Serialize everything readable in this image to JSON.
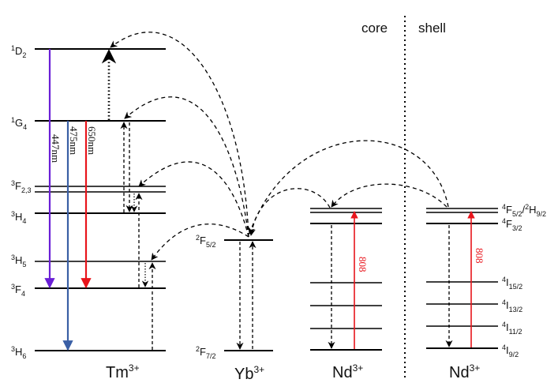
{
  "colors": {
    "violet": "#6a1fd6",
    "blue": "#3a5fa5",
    "red": "#e8141b",
    "black": "#000000"
  },
  "regions": {
    "core": "core",
    "shell": "shell"
  },
  "ions": {
    "tm": {
      "symbol": "Tm",
      "charge": "3+"
    },
    "yb": {
      "symbol": "Yb",
      "charge": "3+"
    },
    "nd_core": {
      "symbol": "Nd",
      "charge": "3+"
    },
    "nd_shell": {
      "symbol": "Nd",
      "charge": "3+"
    }
  },
  "tm_levels": {
    "D2": {
      "mult": "1",
      "term": "D",
      "j": "2"
    },
    "G4": {
      "mult": "1",
      "term": "G",
      "j": "4"
    },
    "F23": {
      "mult": "3",
      "term": "F",
      "j": "2,3"
    },
    "H4": {
      "mult": "3",
      "term": "H",
      "j": "4"
    },
    "H5": {
      "mult": "3",
      "term": "H",
      "j": "5"
    },
    "F4": {
      "mult": "3",
      "term": "F",
      "j": "4"
    },
    "H6": {
      "mult": "3",
      "term": "H",
      "j": "6"
    }
  },
  "yb_levels": {
    "F52": {
      "mult": "2",
      "term": "F",
      "j": "5/2"
    },
    "F72": {
      "mult": "2",
      "term": "F",
      "j": "7/2"
    }
  },
  "nd_levels": {
    "F52H92": {
      "mult": "4",
      "term": "F",
      "j": "5/2",
      "sep": "/",
      "mult2": "2",
      "term2": "H",
      "j2": "9/2"
    },
    "F32": {
      "mult": "4",
      "term": "F",
      "j": "3/2"
    },
    "I152": {
      "mult": "4",
      "term": "I",
      "j": "15/2"
    },
    "I132": {
      "mult": "4",
      "term": "I",
      "j": "13/2"
    },
    "I112": {
      "mult": "4",
      "term": "I",
      "j": "11/2"
    },
    "I92": {
      "mult": "4",
      "term": "I",
      "j": "9/2"
    }
  },
  "emissions": {
    "e447": "447nm",
    "e475": "475nm",
    "e650": "650nm"
  },
  "excitation": {
    "core": "808",
    "shell": "808"
  }
}
